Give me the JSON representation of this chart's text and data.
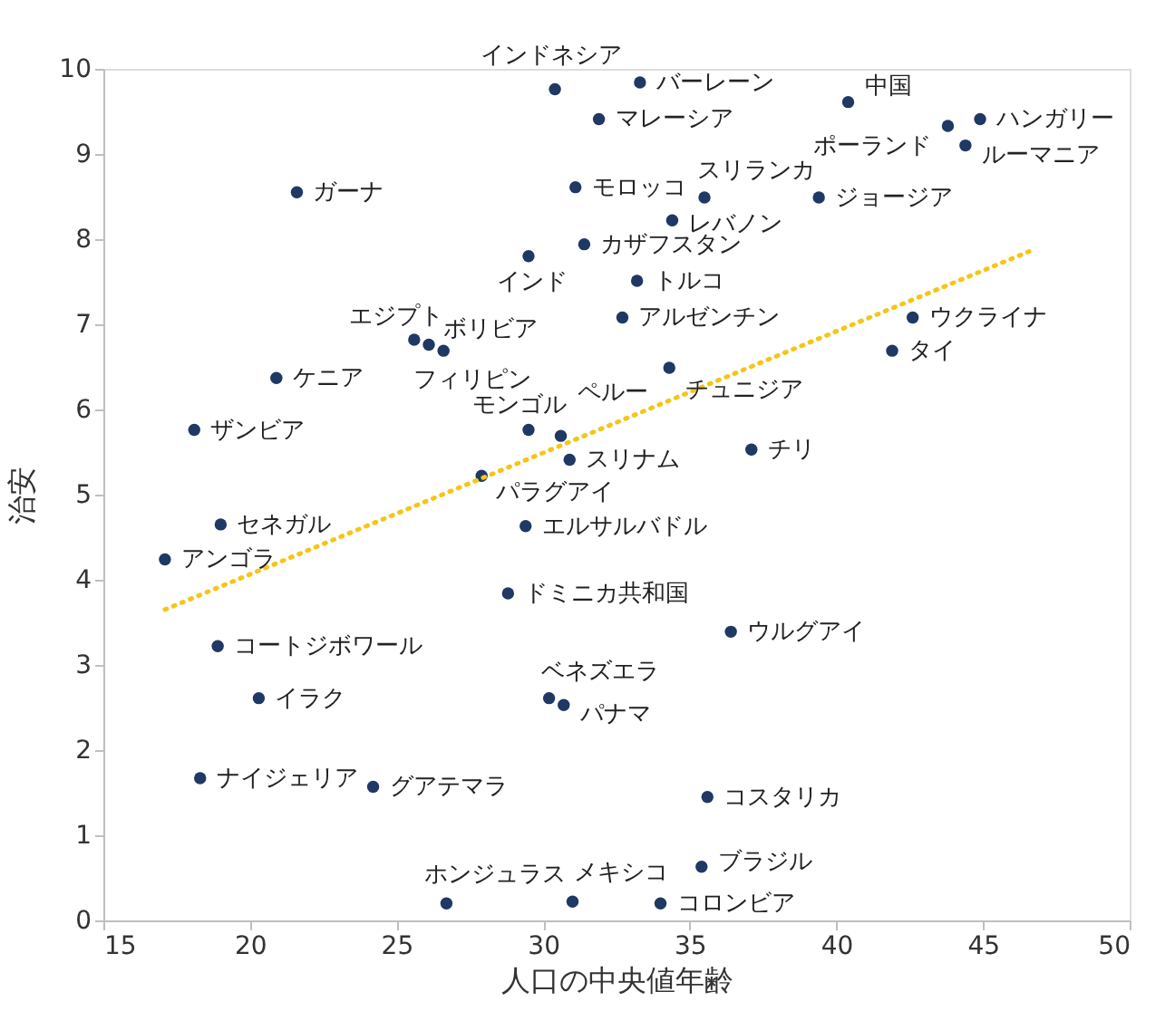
{
  "chart_data": {
    "type": "scatter",
    "xlabel": "人口の中央値年齢",
    "ylabel": "治安",
    "xlim": [
      15,
      50
    ],
    "ylim": [
      0,
      10
    ],
    "xticks": [
      15,
      20,
      25,
      30,
      35,
      40,
      45,
      50
    ],
    "yticks": [
      0,
      1,
      2,
      3,
      4,
      5,
      6,
      7,
      8,
      9,
      10
    ],
    "grid": false,
    "series": [
      {
        "color": "#1f3864",
        "marker": "circle",
        "x": [
          30.4,
          33.3,
          31.9,
          40.4,
          44.9,
          43.8,
          44.4,
          21.6,
          31.1,
          35.5,
          39.4,
          34.4,
          31.4,
          29.5,
          33.2,
          32.7,
          42.6,
          41.9,
          25.6,
          26.1,
          26.6,
          34.3,
          20.9,
          18.1,
          29.5,
          30.6,
          37.1,
          30.9,
          27.9,
          19.0,
          17.1,
          29.4,
          28.8,
          36.4,
          18.9,
          30.2,
          20.3,
          30.7,
          18.3,
          24.2,
          35.6,
          35.4,
          26.7,
          31.0,
          34.0
        ],
        "values": [
          9.76,
          9.84,
          9.41,
          9.61,
          9.41,
          9.33,
          9.1,
          8.55,
          8.61,
          8.49,
          8.49,
          8.22,
          7.94,
          7.8,
          7.51,
          7.08,
          7.08,
          6.69,
          6.82,
          6.76,
          6.69,
          6.49,
          6.37,
          5.76,
          5.76,
          5.69,
          5.53,
          5.41,
          5.22,
          4.65,
          4.24,
          4.63,
          3.84,
          3.39,
          3.22,
          2.61,
          2.61,
          2.53,
          1.67,
          1.57,
          1.45,
          0.63,
          0.2,
          0.22,
          0.2
        ]
      },
      {
        "type": "line",
        "color": "#f5c518",
        "marker": "none",
        "line_style": "dotted",
        "x": [
          17.1,
          46.6
        ],
        "values": [
          3.65,
          7.86
        ]
      }
    ],
    "annotations": [
      {
        "text": "インドネシア",
        "x": 30.4,
        "y": 9.76
      },
      {
        "text": "バーレーン",
        "x": 33.3,
        "y": 9.84
      },
      {
        "text": "マレーシア",
        "x": 31.9,
        "y": 9.41
      },
      {
        "text": "中国",
        "x": 40.4,
        "y": 9.61
      },
      {
        "text": "ハンガリー",
        "x": 44.9,
        "y": 9.41
      },
      {
        "text": "ポーランド",
        "x": 43.8,
        "y": 9.33
      },
      {
        "text": "ルーマニア",
        "x": 44.4,
        "y": 9.1
      },
      {
        "text": "ガーナ",
        "x": 21.6,
        "y": 8.55
      },
      {
        "text": "モロッコ",
        "x": 31.1,
        "y": 8.61
      },
      {
        "text": "スリランカ",
        "x": 35.5,
        "y": 8.49
      },
      {
        "text": "ジョージア",
        "x": 39.4,
        "y": 8.49
      },
      {
        "text": "レバノン",
        "x": 34.4,
        "y": 8.22
      },
      {
        "text": "カザフスタン",
        "x": 31.4,
        "y": 7.94
      },
      {
        "text": "インド",
        "x": 29.5,
        "y": 7.8
      },
      {
        "text": "トルコ",
        "x": 33.2,
        "y": 7.51
      },
      {
        "text": "アルゼンチン",
        "x": 32.7,
        "y": 7.08
      },
      {
        "text": "ウクライナ",
        "x": 42.6,
        "y": 7.08
      },
      {
        "text": "タイ",
        "x": 41.9,
        "y": 6.69
      },
      {
        "text": "エジプト",
        "x": 25.6,
        "y": 6.82
      },
      {
        "text": "ボリビア",
        "x": 26.1,
        "y": 6.76
      },
      {
        "text": "フィリピン",
        "x": 26.6,
        "y": 6.69
      },
      {
        "text": "チュニジア",
        "x": 34.3,
        "y": 6.49
      },
      {
        "text": "ケニア",
        "x": 20.9,
        "y": 6.37
      },
      {
        "text": "ザンビア",
        "x": 18.1,
        "y": 5.76
      },
      {
        "text": "モンゴル",
        "x": 29.5,
        "y": 5.76
      },
      {
        "text": "ペルー",
        "x": 30.6,
        "y": 5.69
      },
      {
        "text": "チリ",
        "x": 37.1,
        "y": 5.53
      },
      {
        "text": "スリナム",
        "x": 30.9,
        "y": 5.41
      },
      {
        "text": "パラグアイ",
        "x": 27.9,
        "y": 5.22
      },
      {
        "text": "セネガル",
        "x": 19.0,
        "y": 4.65
      },
      {
        "text": "アンゴラ",
        "x": 17.1,
        "y": 4.24
      },
      {
        "text": "エルサルバドル",
        "x": 29.4,
        "y": 4.63
      },
      {
        "text": "ドミニカ共和国",
        "x": 28.8,
        "y": 3.84
      },
      {
        "text": "ウルグアイ",
        "x": 36.4,
        "y": 3.39
      },
      {
        "text": "コートジボワール",
        "x": 18.9,
        "y": 3.22
      },
      {
        "text": "ベネズエラ",
        "x": 30.2,
        "y": 2.61
      },
      {
        "text": "イラク",
        "x": 20.3,
        "y": 2.61
      },
      {
        "text": "パナマ",
        "x": 30.7,
        "y": 2.53
      },
      {
        "text": "ナイジェリア",
        "x": 18.3,
        "y": 1.67
      },
      {
        "text": "グアテマラ",
        "x": 24.2,
        "y": 1.57
      },
      {
        "text": "コスタリカ",
        "x": 35.6,
        "y": 1.45
      },
      {
        "text": "ブラジル",
        "x": 35.4,
        "y": 0.63
      },
      {
        "text": "ホンジュラス",
        "x": 26.7,
        "y": 0.2
      },
      {
        "text": "メキシコ",
        "x": 31.0,
        "y": 0.22
      },
      {
        "text": "コロンビア",
        "x": 34.0,
        "y": 0.2
      }
    ]
  }
}
